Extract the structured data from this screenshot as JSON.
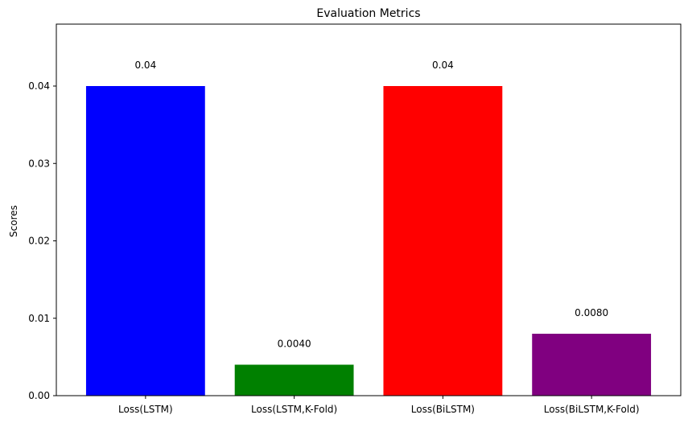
{
  "chart_data": {
    "type": "bar",
    "title": "Evaluation Metrics",
    "xlabel": "",
    "ylabel": "Scores",
    "categories": [
      "Loss(LSTM)",
      "Loss(LSTM,K-Fold)",
      "Loss(BiLSTM)",
      "Loss(BiLSTM,K-Fold)"
    ],
    "values": [
      0.04,
      0.004,
      0.04,
      0.008
    ],
    "data_labels": [
      "0.04",
      "0.0040",
      "0.04",
      "0.0080"
    ],
    "colors": [
      "#0000ff",
      "#008000",
      "#ff0000",
      "#800080"
    ],
    "ylim": [
      0,
      0.048
    ],
    "yticks": [
      0,
      0.01,
      0.02,
      0.03,
      0.04
    ],
    "ytick_labels": [
      "0.00",
      "0.01",
      "0.02",
      "0.03",
      "0.04"
    ],
    "grid": false,
    "legend": "none"
  }
}
